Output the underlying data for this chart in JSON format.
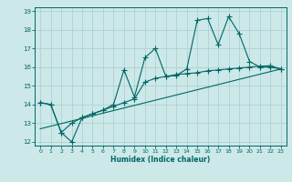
{
  "xlabel": "Humidex (Indice chaleur)",
  "bg_color": "#cce8e8",
  "line_color": "#006666",
  "grid_color": "#aacece",
  "xlim": [
    -0.5,
    23.5
  ],
  "ylim": [
    11.8,
    19.2
  ],
  "yticks": [
    12,
    13,
    14,
    15,
    16,
    17,
    18,
    19
  ],
  "xticks": [
    0,
    1,
    2,
    3,
    4,
    5,
    6,
    7,
    8,
    9,
    10,
    11,
    12,
    13,
    14,
    15,
    16,
    17,
    18,
    19,
    20,
    21,
    22,
    23
  ],
  "line1_x": [
    0,
    1,
    2,
    3,
    4,
    5,
    6,
    7,
    8,
    9,
    10,
    11,
    12,
    13,
    14,
    15,
    16,
    17,
    18,
    19,
    20,
    21,
    22,
    23
  ],
  "line1_y": [
    14.1,
    14.0,
    12.5,
    12.0,
    13.3,
    13.5,
    13.7,
    14.0,
    15.85,
    14.4,
    16.5,
    17.0,
    15.5,
    15.55,
    15.9,
    18.5,
    18.6,
    17.2,
    18.7,
    17.8,
    16.3,
    16.0,
    16.0,
    15.9
  ],
  "line2_x": [
    0,
    1,
    2,
    3,
    4,
    5,
    6,
    7,
    8,
    9,
    10,
    11,
    12,
    13,
    14,
    15,
    16,
    17,
    18,
    19,
    20,
    21,
    22,
    23
  ],
  "line2_y": [
    14.1,
    14.0,
    12.5,
    13.0,
    13.3,
    13.5,
    13.7,
    13.9,
    14.1,
    14.3,
    15.2,
    15.4,
    15.5,
    15.6,
    15.65,
    15.7,
    15.8,
    15.85,
    15.9,
    15.95,
    16.0,
    16.05,
    16.07,
    15.9
  ],
  "line3_x": [
    0,
    23
  ],
  "line3_y": [
    12.7,
    15.9
  ]
}
